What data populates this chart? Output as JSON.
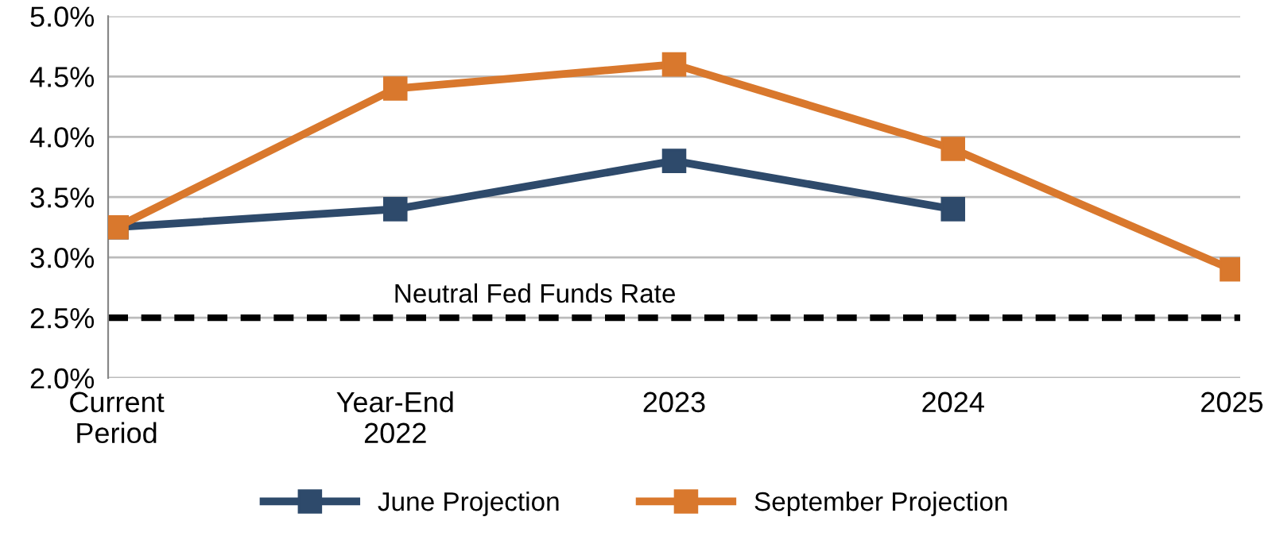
{
  "chart_data": {
    "type": "line",
    "categories": [
      "Current\nPeriod",
      "Year-End\n2022",
      "2023",
      "2024",
      "2025"
    ],
    "series": [
      {
        "name": "June Projection",
        "color": "#2e4a6b",
        "values": [
          3.25,
          3.4,
          3.8,
          3.4,
          null
        ]
      },
      {
        "name": "September Projection",
        "color": "#d9782d",
        "values": [
          3.25,
          4.4,
          4.6,
          3.9,
          2.9
        ]
      }
    ],
    "ylim": [
      2.0,
      5.0
    ],
    "yticks": [
      {
        "value": 2.0,
        "label": "2.0%"
      },
      {
        "value": 2.5,
        "label": "2.5%"
      },
      {
        "value": 3.0,
        "label": "3.0%"
      },
      {
        "value": 3.5,
        "label": "3.5%"
      },
      {
        "value": 4.0,
        "label": "4.0%"
      },
      {
        "value": 4.5,
        "label": "4.5%"
      },
      {
        "value": 5.0,
        "label": "5.0%"
      }
    ],
    "ref_lines": [
      {
        "axis": "y",
        "value": 2.5,
        "label": "Neutral Fed Funds Rate",
        "color": "#000000",
        "line_style": "dashed"
      }
    ],
    "grid": "y",
    "legend": "bottom",
    "marker": "square",
    "line_style": "solid"
  }
}
